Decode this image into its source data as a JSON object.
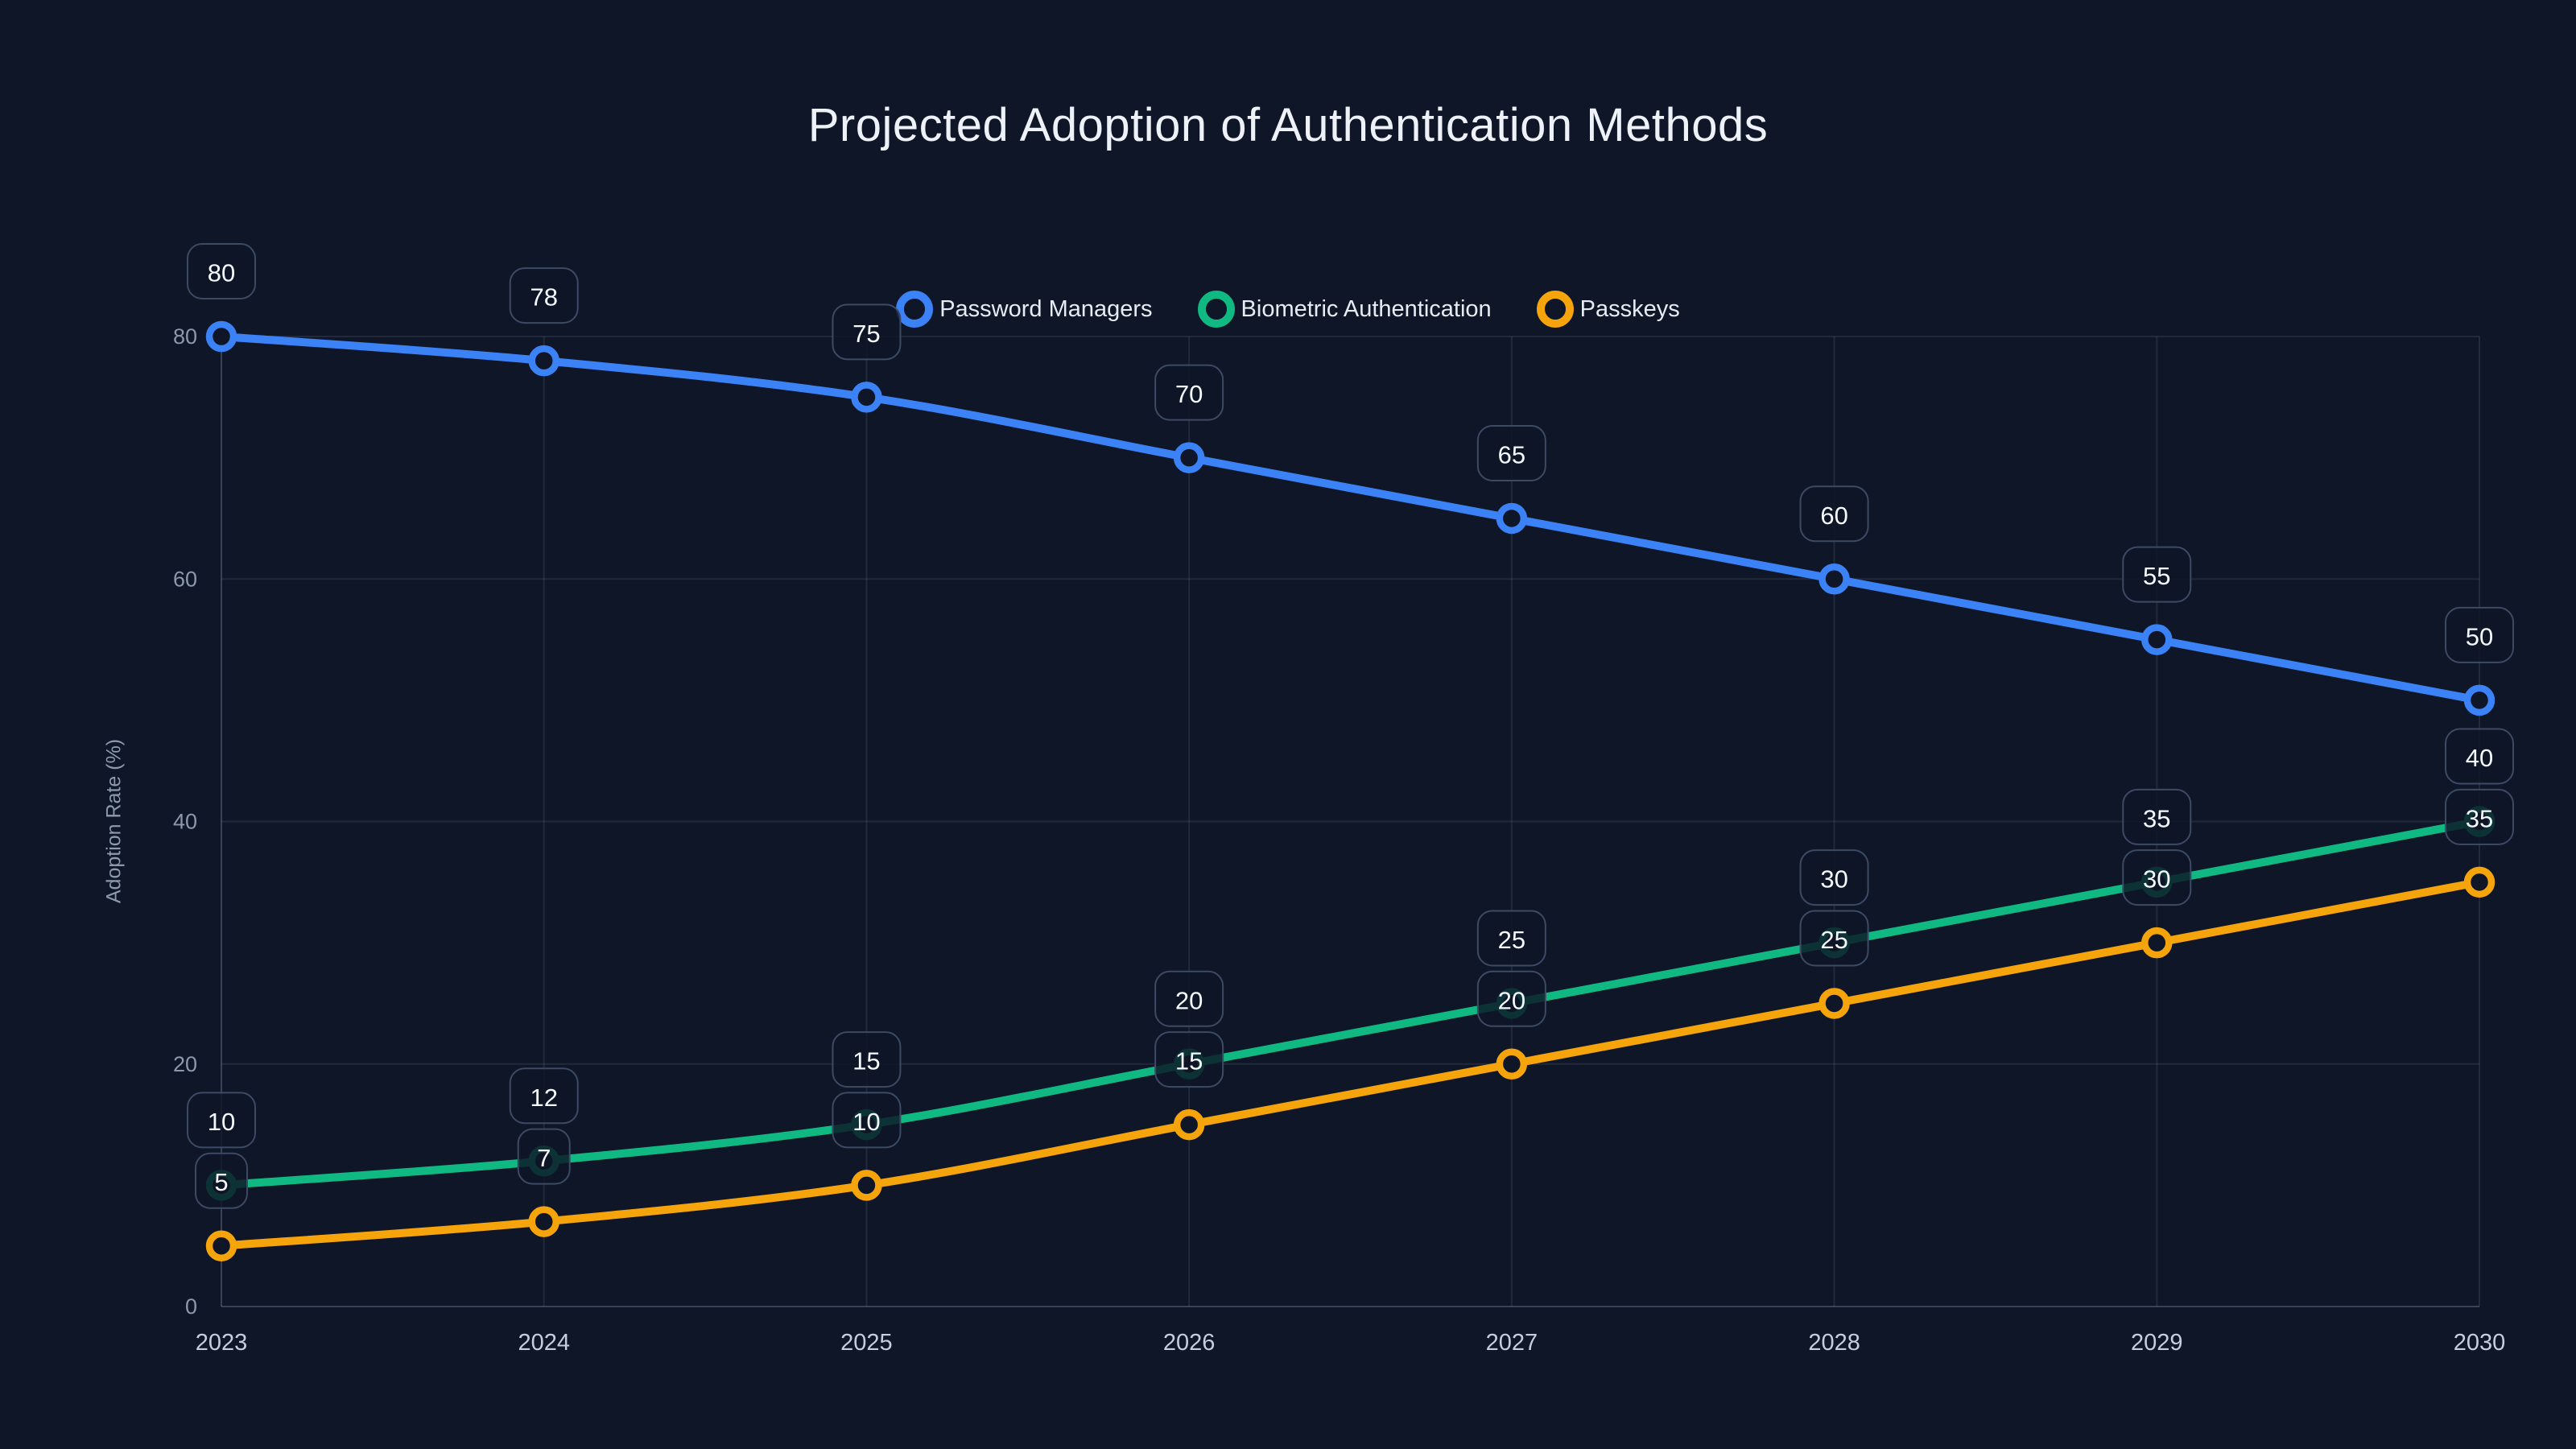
{
  "title": "Projected Adoption of Authentication Methods",
  "chart_data": {
    "type": "line",
    "title": "Projected Adoption of Authentication Methods",
    "x_categories": [
      "2023",
      "2024",
      "2025",
      "2026",
      "2027",
      "2028",
      "2029",
      "2030"
    ],
    "xlabel": "",
    "ylabel": "Adoption Rate (%)",
    "ylim": [
      0,
      80
    ],
    "yticks": [
      0,
      20,
      40,
      60,
      80
    ],
    "grid": true,
    "smooth": true,
    "point_labels_visible": true,
    "legend": {
      "position": "top-center",
      "entries": [
        "Password Managers",
        "Biometric Authentication",
        "Passkeys"
      ]
    },
    "series": [
      {
        "name": "Password Managers",
        "color": "#3b82f6",
        "values": [
          80,
          78,
          75,
          70,
          65,
          60,
          55,
          50
        ]
      },
      {
        "name": "Biometric Authentication",
        "color": "#10b981",
        "values": [
          10,
          12,
          15,
          20,
          25,
          30,
          35,
          40
        ]
      },
      {
        "name": "Passkeys",
        "color": "#f5a40b",
        "values": [
          5,
          7,
          10,
          15,
          20,
          25,
          30,
          35
        ]
      }
    ]
  },
  "theme": {
    "background": "#0e1627",
    "title_color": "#eef2f8",
    "grid_color": "rgba(148,163,184,0.14)",
    "axis_color": "rgba(148,163,184,0.32)",
    "y_tick_color": "#8c98ac",
    "x_tick_color": "#c5cede",
    "axis_title_color": "#8d99ad",
    "legend_text_color": "#e7ecf3",
    "label_pill_bg": "rgba(13,21,38,0.82)",
    "label_pill_border": "#3d4a66",
    "label_pill_text": "#f5f8fc",
    "marker_fill": "#0e1627"
  }
}
